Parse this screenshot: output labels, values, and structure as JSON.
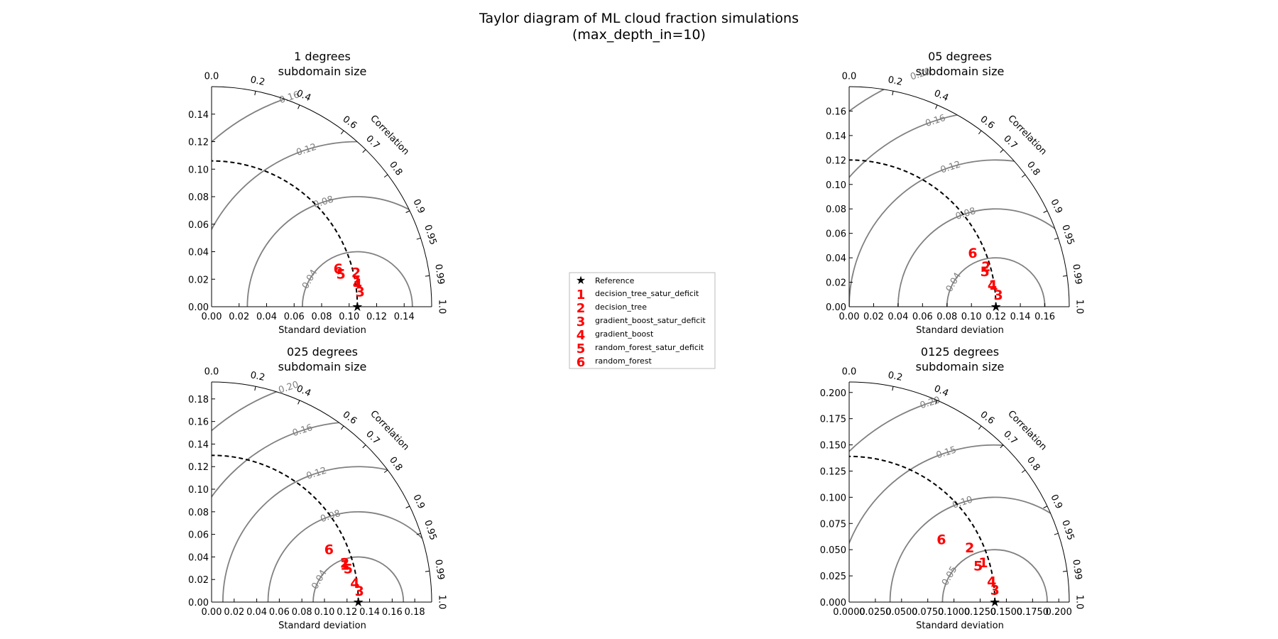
{
  "figure": {
    "title_line1": "Taylor diagram of ML cloud fraction simulations",
    "title_line2": "(max_depth_in=10)"
  },
  "legend": {
    "reference_label": "Reference",
    "entries": [
      {
        "marker": "1",
        "label": "decision_tree_satur_deficit"
      },
      {
        "marker": "2",
        "label": "decision_tree"
      },
      {
        "marker": "3",
        "label": "gradient_boost_satur_deficit"
      },
      {
        "marker": "4",
        "label": "gradient_boost"
      },
      {
        "marker": "5",
        "label": "random_forest_satur_deficit"
      },
      {
        "marker": "6",
        "label": "random_forest"
      }
    ]
  },
  "colors": {
    "model_markers": "#ff0000",
    "rms_contours": "#808080",
    "reference_arc": "#000000"
  },
  "chart_data": [
    {
      "type": "taylor",
      "title_line1": "1 degrees",
      "title_line2": "subdomain size",
      "xlabel": "Standard deviation",
      "corr_label": "Correlation",
      "smax": 0.16,
      "ticks": [
        "0.00",
        "0.02",
        "0.04",
        "0.06",
        "0.08",
        "0.10",
        "0.12",
        "0.14"
      ],
      "tick_values": [
        0,
        0.02,
        0.04,
        0.06,
        0.08,
        0.1,
        0.12,
        0.14
      ],
      "ref_std": 0.106,
      "corr_ticks": [
        "0.0",
        "0.2",
        "0.4",
        "0.6",
        "0.7",
        "0.8",
        "0.9",
        "0.95",
        "0.99",
        "1.0"
      ],
      "corr_values": [
        0,
        0.2,
        0.4,
        0.6,
        0.7,
        0.8,
        0.9,
        0.95,
        0.99,
        1.0
      ],
      "rms_levels": [
        0.04,
        0.08,
        0.12,
        0.16
      ],
      "rms_labels": [
        "0.04",
        "0.08",
        "0.12",
        "0.16"
      ],
      "points": [
        {
          "id": "1",
          "x": 0.106,
          "y": 0.018
        },
        {
          "id": "2",
          "x": 0.105,
          "y": 0.025
        },
        {
          "id": "3",
          "x": 0.108,
          "y": 0.011
        },
        {
          "id": "4",
          "x": 0.106,
          "y": 0.017
        },
        {
          "id": "5",
          "x": 0.094,
          "y": 0.024
        },
        {
          "id": "6",
          "x": 0.092,
          "y": 0.028
        }
      ]
    },
    {
      "type": "taylor",
      "title_line1": "05 degrees",
      "title_line2": "subdomain size",
      "xlabel": "Standard deviation",
      "corr_label": "Correlation",
      "smax": 0.18,
      "ticks": [
        "0.00",
        "0.02",
        "0.04",
        "0.06",
        "0.08",
        "0.10",
        "0.12",
        "0.14",
        "0.16"
      ],
      "tick_values": [
        0,
        0.02,
        0.04,
        0.06,
        0.08,
        0.1,
        0.12,
        0.14,
        0.16
      ],
      "ref_std": 0.12,
      "corr_ticks": [
        "0.0",
        "0.2",
        "0.4",
        "0.6",
        "0.7",
        "0.8",
        "0.9",
        "0.95",
        "0.99",
        "1.0"
      ],
      "corr_values": [
        0,
        0.2,
        0.4,
        0.6,
        0.7,
        0.8,
        0.9,
        0.95,
        0.99,
        1.0
      ],
      "rms_levels": [
        0.04,
        0.08,
        0.12,
        0.16,
        0.2
      ],
      "rms_labels": [
        "0.04",
        "0.08",
        "0.12",
        "0.16",
        "0.20"
      ],
      "points": [
        {
          "id": "1",
          "x": 0.118,
          "y": 0.018
        },
        {
          "id": "2",
          "x": 0.112,
          "y": 0.033
        },
        {
          "id": "3",
          "x": 0.122,
          "y": 0.01
        },
        {
          "id": "4",
          "x": 0.117,
          "y": 0.018
        },
        {
          "id": "5",
          "x": 0.111,
          "y": 0.029
        },
        {
          "id": "6",
          "x": 0.101,
          "y": 0.044
        }
      ]
    },
    {
      "type": "taylor",
      "title_line1": "025 degrees",
      "title_line2": "subdomain size",
      "xlabel": "Standard deviation",
      "corr_label": "Correlation",
      "smax": 0.195,
      "ticks": [
        "0.00",
        "0.02",
        "0.04",
        "0.06",
        "0.08",
        "0.10",
        "0.12",
        "0.14",
        "0.16",
        "0.18"
      ],
      "tick_values": [
        0,
        0.02,
        0.04,
        0.06,
        0.08,
        0.1,
        0.12,
        0.14,
        0.16,
        0.18
      ],
      "ref_std": 0.13,
      "corr_ticks": [
        "0.0",
        "0.2",
        "0.4",
        "0.6",
        "0.7",
        "0.8",
        "0.9",
        "0.95",
        "0.99",
        "1.0"
      ],
      "corr_values": [
        0,
        0.2,
        0.4,
        0.6,
        0.7,
        0.8,
        0.9,
        0.95,
        0.99,
        1.0
      ],
      "rms_levels": [
        0.04,
        0.08,
        0.12,
        0.16,
        0.2
      ],
      "rms_labels": [
        "0.04",
        "0.08",
        "0.12",
        "0.16",
        "0.20"
      ],
      "points": [
        {
          "id": "1",
          "x": 0.118,
          "y": 0.033
        },
        {
          "id": "2",
          "x": 0.118,
          "y": 0.035
        },
        {
          "id": "3",
          "x": 0.131,
          "y": 0.01
        },
        {
          "id": "4",
          "x": 0.127,
          "y": 0.017
        },
        {
          "id": "5",
          "x": 0.121,
          "y": 0.03
        },
        {
          "id": "6",
          "x": 0.104,
          "y": 0.047
        }
      ]
    },
    {
      "type": "taylor",
      "title_line1": "0125 degrees",
      "title_line2": "subdomain size",
      "xlabel": "Standard deviation",
      "corr_label": "Correlation",
      "smax": 0.21,
      "ticks": [
        "0.0000",
        "0.0250",
        "0.0500",
        "0.0750",
        "0.1000",
        "0.1250",
        "0.1500",
        "0.1750",
        "0.200"
      ],
      "tick_labels_y": [
        "0.000",
        "0.025",
        "0.050",
        "0.075",
        "0.100",
        "0.125",
        "0.150",
        "0.175",
        "0.200"
      ],
      "tick_values": [
        0,
        0.025,
        0.05,
        0.075,
        0.1,
        0.125,
        0.15,
        0.175,
        0.2
      ],
      "ref_std": 0.139,
      "corr_ticks": [
        "0.0",
        "0.2",
        "0.4",
        "0.6",
        "0.7",
        "0.8",
        "0.9",
        "0.95",
        "0.99",
        "1.0"
      ],
      "corr_values": [
        0,
        0.2,
        0.4,
        0.6,
        0.7,
        0.8,
        0.9,
        0.95,
        0.99,
        1.0
      ],
      "rms_levels": [
        0.05,
        0.1,
        0.15,
        0.2
      ],
      "rms_labels": [
        "0.05",
        "0.10",
        "0.15",
        "0.20"
      ],
      "points": [
        {
          "id": "1",
          "x": 0.128,
          "y": 0.038
        },
        {
          "id": "2",
          "x": 0.115,
          "y": 0.052
        },
        {
          "id": "3",
          "x": 0.139,
          "y": 0.012
        },
        {
          "id": "4",
          "x": 0.136,
          "y": 0.02
        },
        {
          "id": "5",
          "x": 0.123,
          "y": 0.035
        },
        {
          "id": "6",
          "x": 0.088,
          "y": 0.06
        }
      ]
    }
  ]
}
